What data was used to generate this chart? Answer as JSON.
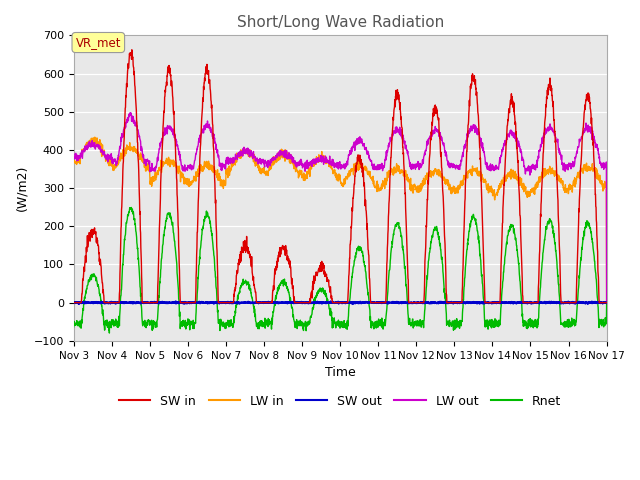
{
  "title": "Short/Long Wave Radiation",
  "xlabel": "Time",
  "ylabel": "(W/m2)",
  "ylim": [
    -100,
    700
  ],
  "yticks": [
    -100,
    0,
    100,
    200,
    300,
    400,
    500,
    600,
    700
  ],
  "annotation_text": "VR_met",
  "annotation_color": "#aa0000",
  "annotation_bg": "#ffff99",
  "colors": {
    "SW_in": "#dd0000",
    "LW_in": "#ff9900",
    "SW_out": "#0000cc",
    "LW_out": "#cc00cc",
    "Rnet": "#00bb00"
  },
  "legend_labels": [
    "SW in",
    "LW in",
    "SW out",
    "LW out",
    "Rnet"
  ],
  "legend_colors": [
    "#dd0000",
    "#ff9900",
    "#0000cc",
    "#cc00cc",
    "#00bb00"
  ],
  "xtick_labels": [
    "Nov 3",
    "Nov 4",
    "Nov 5",
    "Nov 6",
    "Nov 7",
    "Nov 8",
    "Nov 9",
    "Nov 10",
    "Nov 11",
    "Nov 12",
    "Nov 13",
    "Nov 14",
    "Nov 15",
    "Nov 16",
    "Nov 17"
  ],
  "n_days": 14,
  "pts_per_day": 144,
  "plot_bg": "#e8e8e8",
  "title_color": "#555555"
}
